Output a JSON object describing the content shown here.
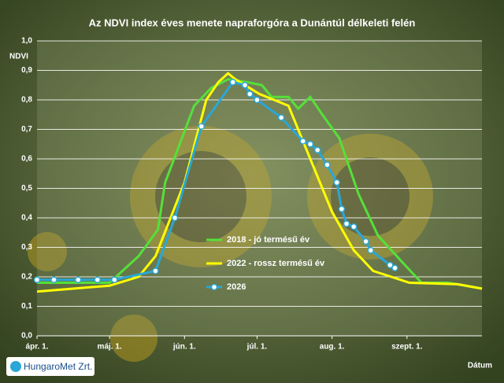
{
  "chart_data": {
    "type": "line",
    "title": "Az NDVI index éves menete napraforgóra a Dunántúl délkeleti felén",
    "y_label": "NDVI",
    "x_label": "Dátum",
    "xlim": [
      0,
      184
    ],
    "xticks": [
      {
        "value": 0,
        "label": "ápr. 1."
      },
      {
        "value": 30,
        "label": "máj. 1."
      },
      {
        "value": 61,
        "label": "jún. 1."
      },
      {
        "value": 91,
        "label": "júl. 1."
      },
      {
        "value": 122,
        "label": "aug. 1."
      },
      {
        "value": 153,
        "label": "szept. 1."
      }
    ],
    "ylim": [
      0,
      1
    ],
    "yticks": [
      {
        "value": 0,
        "label": "0,0"
      },
      {
        "value": 0.1,
        "label": "0,1"
      },
      {
        "value": 0.2,
        "label": "0,2"
      },
      {
        "value": 0.3,
        "label": "0,3"
      },
      {
        "value": 0.4,
        "label": "0,4"
      },
      {
        "value": 0.5,
        "label": "0,5"
      },
      {
        "value": 0.6,
        "label": "0,6"
      },
      {
        "value": 0.7,
        "label": "0,7"
      },
      {
        "value": 0.8,
        "label": "0,8"
      },
      {
        "value": 0.9,
        "label": "0,9"
      },
      {
        "value": 1,
        "label": "1,0"
      }
    ],
    "grid": true,
    "series": [
      {
        "name": "2018 - jó termésű év",
        "color": "#55e03a",
        "markers": false,
        "x": [
          0,
          30,
          42,
          50,
          53,
          65,
          72,
          79,
          87,
          93,
          97,
          104,
          108,
          113,
          118,
          125,
          133,
          141,
          151,
          159,
          170,
          184
        ],
        "values": [
          0.18,
          0.18,
          0.27,
          0.36,
          0.52,
          0.78,
          0.84,
          0.87,
          0.86,
          0.85,
          0.81,
          0.81,
          0.77,
          0.81,
          0.75,
          0.67,
          0.48,
          0.34,
          0.25,
          0.18,
          0.18,
          0.16
        ]
      },
      {
        "name": "2022 - rossz termésű év",
        "color": "#ffff00",
        "markers": false,
        "x": [
          0,
          30,
          42,
          49,
          61,
          70,
          75,
          79,
          82,
          92,
          104,
          113,
          122,
          131,
          139,
          154,
          174,
          184
        ],
        "values": [
          0.15,
          0.17,
          0.2,
          0.27,
          0.52,
          0.8,
          0.86,
          0.89,
          0.87,
          0.82,
          0.78,
          0.6,
          0.42,
          0.29,
          0.22,
          0.18,
          0.175,
          0.16
        ]
      },
      {
        "name": "2026",
        "color": "#2aa7d6",
        "markers": true,
        "x": [
          0,
          7,
          17,
          25,
          32,
          49,
          57,
          68,
          81,
          86,
          88,
          91,
          101,
          110,
          113,
          116,
          120,
          124,
          126,
          128,
          131,
          136,
          138,
          146,
          148
        ],
        "values": [
          0.19,
          0.19,
          0.19,
          0.19,
          0.19,
          0.22,
          0.4,
          0.71,
          0.86,
          0.85,
          0.82,
          0.8,
          0.74,
          0.66,
          0.65,
          0.63,
          0.58,
          0.52,
          0.43,
          0.38,
          0.37,
          0.32,
          0.29,
          0.24,
          0.23
        ]
      }
    ]
  },
  "logo": "HungaroMet Zrt."
}
